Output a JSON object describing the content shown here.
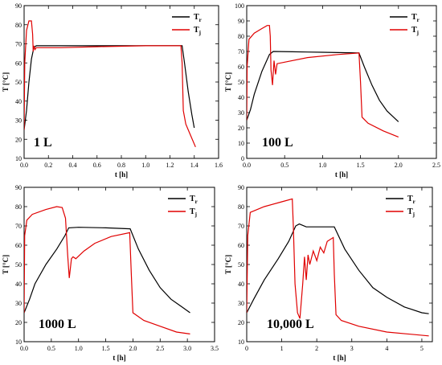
{
  "chart_data": [
    {
      "type": "line",
      "label": "1 L",
      "xlabel": "t [h]",
      "ylabel": "T [°C]",
      "xlim": [
        0,
        1.6
      ],
      "ylim": [
        10,
        90
      ],
      "xticks": [
        "0.0",
        "0.2",
        "0.4",
        "0.6",
        "0.8",
        "1.0",
        "1.2",
        "1.4",
        "1.6"
      ],
      "yticks": [
        "10",
        "20",
        "30",
        "40",
        "50",
        "60",
        "70",
        "80",
        "90"
      ],
      "legend": "top-right",
      "series": [
        {
          "name": "T",
          "sub": "r",
          "color": "#000000",
          "points": [
            [
              0,
              25
            ],
            [
              0.02,
              35
            ],
            [
              0.04,
              50
            ],
            [
              0.06,
              62
            ],
            [
              0.08,
              68
            ],
            [
              0.1,
              69
            ],
            [
              0.4,
              69
            ],
            [
              0.8,
              69
            ],
            [
              1.2,
              69
            ],
            [
              1.3,
              69
            ],
            [
              1.32,
              60
            ],
            [
              1.35,
              45
            ],
            [
              1.38,
              33
            ],
            [
              1.4,
              26
            ]
          ]
        },
        {
          "name": "T",
          "sub": "j",
          "color": "#e00000",
          "points": [
            [
              0,
              25
            ],
            [
              0.005,
              60
            ],
            [
              0.02,
              77
            ],
            [
              0.04,
              82
            ],
            [
              0.06,
              82
            ],
            [
              0.07,
              75
            ],
            [
              0.075,
              66
            ],
            [
              0.08,
              69
            ],
            [
              0.09,
              67
            ],
            [
              0.1,
              68
            ],
            [
              0.3,
              68
            ],
            [
              0.6,
              68.5
            ],
            [
              1.0,
              69
            ],
            [
              1.29,
              69
            ],
            [
              1.3,
              60
            ],
            [
              1.31,
              35
            ],
            [
              1.33,
              28
            ],
            [
              1.37,
              22
            ],
            [
              1.41,
              16
            ]
          ]
        }
      ]
    },
    {
      "type": "line",
      "label": "100 L",
      "xlabel": "t [h]",
      "ylabel": "T [°C]",
      "xlim": [
        0,
        2.5
      ],
      "ylim": [
        0,
        100
      ],
      "xticks": [
        "0.0",
        "0.5",
        "1.0",
        "1.5",
        "2.0",
        "2.5"
      ],
      "yticks": [
        "0",
        "10",
        "20",
        "30",
        "40",
        "50",
        "60",
        "70",
        "80",
        "90",
        "100"
      ],
      "legend": "top-right",
      "series": [
        {
          "name": "T",
          "sub": "r",
          "color": "#000000",
          "points": [
            [
              0,
              25
            ],
            [
              0.05,
              32
            ],
            [
              0.1,
              42
            ],
            [
              0.2,
              57
            ],
            [
              0.3,
              68
            ],
            [
              0.35,
              70
            ],
            [
              0.6,
              69.8
            ],
            [
              1.0,
              69.5
            ],
            [
              1.48,
              69
            ],
            [
              1.55,
              60
            ],
            [
              1.65,
              48
            ],
            [
              1.75,
              38
            ],
            [
              1.85,
              31
            ],
            [
              2.0,
              24
            ]
          ]
        },
        {
          "name": "T",
          "sub": "j",
          "color": "#e00000",
          "points": [
            [
              0,
              25
            ],
            [
              0.005,
              60
            ],
            [
              0.03,
              78
            ],
            [
              0.1,
              82
            ],
            [
              0.2,
              85
            ],
            [
              0.27,
              87
            ],
            [
              0.3,
              87
            ],
            [
              0.31,
              80
            ],
            [
              0.32,
              58
            ],
            [
              0.34,
              48
            ],
            [
              0.36,
              64
            ],
            [
              0.38,
              55
            ],
            [
              0.4,
              62
            ],
            [
              0.5,
              63
            ],
            [
              0.8,
              66
            ],
            [
              1.2,
              68
            ],
            [
              1.48,
              69
            ],
            [
              1.5,
              50
            ],
            [
              1.52,
              27
            ],
            [
              1.6,
              23
            ],
            [
              1.8,
              18
            ],
            [
              2.0,
              14
            ]
          ]
        }
      ]
    },
    {
      "type": "line",
      "label": "1000 L",
      "xlabel": "t [h]",
      "ylabel": "T [°C]",
      "xlim": [
        0,
        3.5
      ],
      "ylim": [
        10,
        90
      ],
      "xticks": [
        "0.0",
        "0.5",
        "1.0",
        "1.5",
        "2.0",
        "2.5",
        "3.0",
        "3.5"
      ],
      "yticks": [
        "10",
        "20",
        "30",
        "40",
        "50",
        "60",
        "70",
        "80",
        "90"
      ],
      "legend": "top-right",
      "series": [
        {
          "name": "T",
          "sub": "r",
          "color": "#000000",
          "points": [
            [
              0,
              25
            ],
            [
              0.1,
              32
            ],
            [
              0.2,
              40
            ],
            [
              0.4,
              50
            ],
            [
              0.6,
              58
            ],
            [
              0.75,
              65
            ],
            [
              0.82,
              69
            ],
            [
              1.0,
              69.3
            ],
            [
              1.5,
              69
            ],
            [
              1.95,
              68.5
            ],
            [
              2.1,
              58
            ],
            [
              2.3,
              47
            ],
            [
              2.5,
              38
            ],
            [
              2.7,
              32
            ],
            [
              2.9,
              28
            ],
            [
              3.05,
              25
            ]
          ]
        },
        {
          "name": "T",
          "sub": "j",
          "color": "#e00000",
          "points": [
            [
              0,
              25
            ],
            [
              0.01,
              65
            ],
            [
              0.05,
              73
            ],
            [
              0.15,
              76
            ],
            [
              0.4,
              78.5
            ],
            [
              0.6,
              80
            ],
            [
              0.7,
              79.5
            ],
            [
              0.76,
              74
            ],
            [
              0.8,
              55
            ],
            [
              0.83,
              43
            ],
            [
              0.87,
              53
            ],
            [
              0.9,
              54
            ],
            [
              0.95,
              53
            ],
            [
              1.1,
              57
            ],
            [
              1.3,
              61
            ],
            [
              1.6,
              64.5
            ],
            [
              1.94,
              66.5
            ],
            [
              1.97,
              45
            ],
            [
              2.0,
              25
            ],
            [
              2.2,
              21
            ],
            [
              2.5,
              18
            ],
            [
              2.8,
              15
            ],
            [
              3.05,
              14
            ]
          ]
        }
      ]
    },
    {
      "type": "line",
      "label": "10,000 L",
      "xlabel": "t [h]",
      "ylabel": "T [°C]",
      "xlim": [
        0,
        5.3
      ],
      "ylim": [
        10,
        90
      ],
      "xticks": [
        "0",
        "1",
        "2",
        "3",
        "4",
        "5"
      ],
      "yticks": [
        "10",
        "20",
        "30",
        "40",
        "50",
        "60",
        "70",
        "80",
        "90"
      ],
      "legend": "top-right",
      "series": [
        {
          "name": "T",
          "sub": "r",
          "color": "#000000",
          "points": [
            [
              0,
              25
            ],
            [
              0.2,
              32
            ],
            [
              0.5,
              42
            ],
            [
              0.9,
              53
            ],
            [
              1.2,
              62
            ],
            [
              1.4,
              70
            ],
            [
              1.5,
              71
            ],
            [
              1.7,
              69.5
            ],
            [
              2.5,
              69.5
            ],
            [
              2.8,
              58
            ],
            [
              3.2,
              47
            ],
            [
              3.6,
              38
            ],
            [
              4.0,
              33
            ],
            [
              4.5,
              28
            ],
            [
              5.0,
              25
            ],
            [
              5.2,
              24.5
            ]
          ]
        },
        {
          "name": "T",
          "sub": "j",
          "color": "#e00000",
          "points": [
            [
              0,
              25
            ],
            [
              0.03,
              65
            ],
            [
              0.1,
              77
            ],
            [
              0.5,
              80
            ],
            [
              1.0,
              82.5
            ],
            [
              1.3,
              84
            ],
            [
              1.33,
              70
            ],
            [
              1.38,
              40
            ],
            [
              1.45,
              25
            ],
            [
              1.52,
              22
            ],
            [
              1.6,
              40
            ],
            [
              1.65,
              54
            ],
            [
              1.7,
              42
            ],
            [
              1.75,
              55
            ],
            [
              1.8,
              50
            ],
            [
              1.9,
              57
            ],
            [
              2.0,
              52
            ],
            [
              2.1,
              59
            ],
            [
              2.2,
              56
            ],
            [
              2.3,
              62
            ],
            [
              2.47,
              64
            ],
            [
              2.5,
              45
            ],
            [
              2.55,
              24
            ],
            [
              2.7,
              21
            ],
            [
              3.2,
              18
            ],
            [
              4.0,
              15
            ],
            [
              5.2,
              13
            ]
          ]
        }
      ]
    }
  ]
}
